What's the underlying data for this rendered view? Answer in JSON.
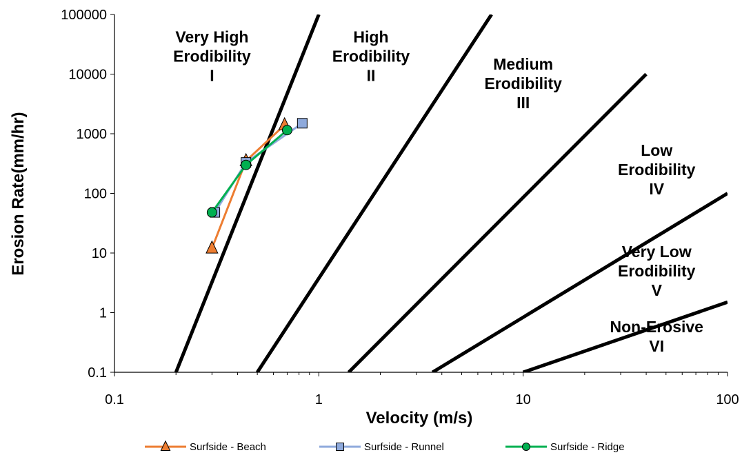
{
  "chart_data": {
    "type": "scatter",
    "title": "",
    "xlabel": "Velocity (m/s)",
    "ylabel": "Erosion Rate(mm/hr)",
    "xscale": "log",
    "yscale": "log",
    "xlim": [
      0.1,
      100
    ],
    "ylim": [
      0.1,
      100000
    ],
    "x_ticks": [
      "0.1",
      "1",
      "10",
      "100"
    ],
    "y_ticks": [
      "0.1",
      "1",
      "10",
      "100",
      "1000",
      "10000",
      "100000"
    ],
    "grid": false,
    "legend_position": "bottom",
    "boundaries": [
      {
        "x": [
          0.2,
          1.0
        ],
        "y": [
          0.1,
          100000
        ]
      },
      {
        "x": [
          0.5,
          7.0
        ],
        "y": [
          0.1,
          100000
        ]
      },
      {
        "x": [
          1.4,
          40
        ],
        "y": [
          0.1,
          10000
        ]
      },
      {
        "x": [
          3.6,
          100
        ],
        "y": [
          0.1,
          100
        ]
      },
      {
        "x": [
          10,
          100
        ],
        "y": [
          0.1,
          1.5
        ]
      }
    ],
    "zones": [
      {
        "lines": [
          "Very High",
          "Erodibility",
          "I"
        ],
        "x": 0.3,
        "y": 20000
      },
      {
        "lines": [
          "High",
          "Erodibility",
          "II"
        ],
        "x": 1.8,
        "y": 20000
      },
      {
        "lines": [
          "Medium",
          "Erodibility",
          "III"
        ],
        "x": 10,
        "y": 7000
      },
      {
        "lines": [
          "Low",
          "Erodibility",
          "IV"
        ],
        "x": 45,
        "y": 250
      },
      {
        "lines": [
          "Very Low",
          "Erodibility",
          "V"
        ],
        "x": 45,
        "y": 5
      },
      {
        "lines": [
          "Non-Erosive",
          "VI"
        ],
        "x": 45,
        "y": 0.4
      }
    ],
    "series": [
      {
        "name": "Surfside - Beach",
        "marker": "triangle",
        "color": "#ED7D31",
        "x": [
          0.3,
          0.44,
          0.68
        ],
        "y": [
          12,
          350,
          1400
        ]
      },
      {
        "name": "Surfside - Runnel",
        "marker": "square",
        "color": "#8FAADC",
        "x": [
          0.31,
          0.44,
          0.83
        ],
        "y": [
          48,
          330,
          1500
        ]
      },
      {
        "name": "Surfside - Ridge",
        "marker": "circle",
        "color": "#00B050",
        "x": [
          0.3,
          0.44,
          0.7
        ],
        "y": [
          48,
          300,
          1150
        ]
      }
    ]
  }
}
